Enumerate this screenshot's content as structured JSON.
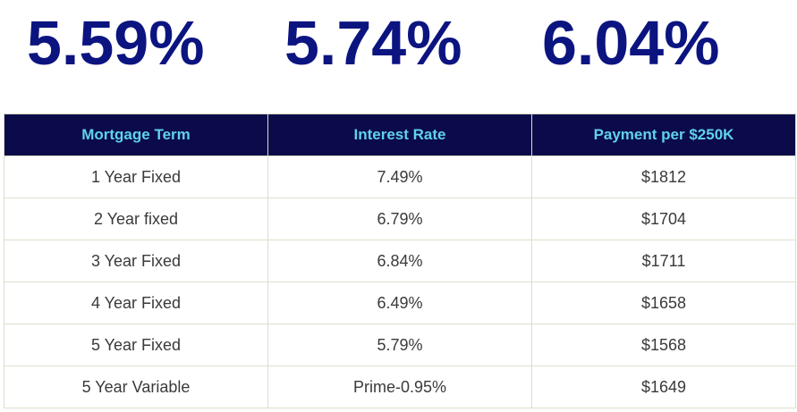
{
  "headline_rates": [
    "5.59%",
    "5.74%",
    "6.04%"
  ],
  "table": {
    "headers": [
      "Mortgage Term",
      "Interest Rate",
      "Payment per $250K"
    ],
    "rows": [
      [
        "1 Year Fixed",
        "7.49%",
        "$1812"
      ],
      [
        "2 Year fixed",
        "6.79%",
        "$1704"
      ],
      [
        "3 Year Fixed",
        "6.84%",
        "$1711"
      ],
      [
        "4 Year Fixed",
        "6.49%",
        "$1658"
      ],
      [
        "5 Year Fixed",
        "5.79%",
        "$1568"
      ],
      [
        "5 Year Variable",
        "Prime-0.95%",
        "$1649"
      ]
    ]
  },
  "colors": {
    "rate_text": "#0c1480",
    "header_bg": "#0b0b4a",
    "header_text": "#5fd3ea",
    "cell_text": "#3a3a3a",
    "border": "#dcdfcc"
  }
}
